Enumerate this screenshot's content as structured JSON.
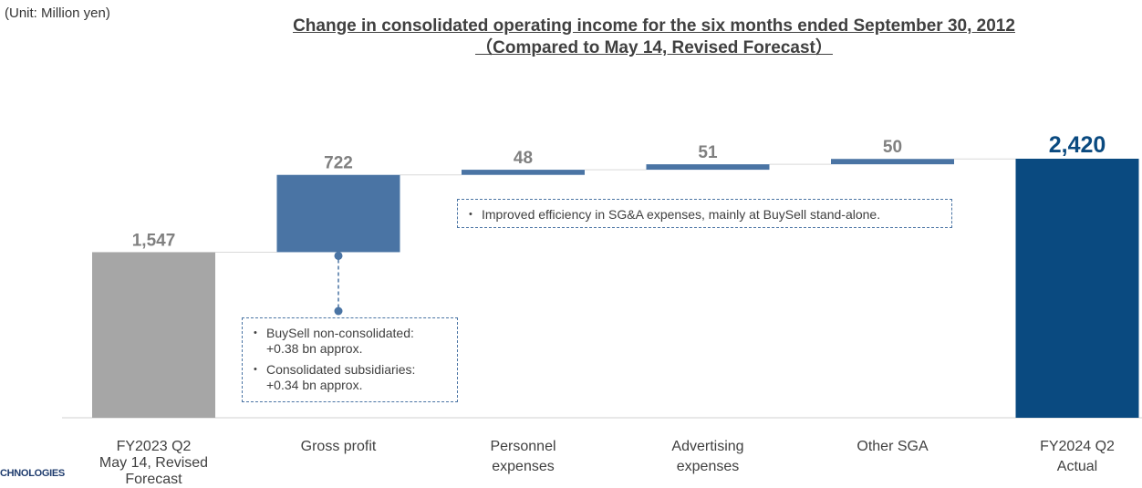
{
  "unit_label": "(Unit: Million yen)",
  "title_line1": "Change in consolidated operating income for the six months ended September 30, 2012",
  "title_line2": "（Compared to May 14, Revised Forecast）",
  "logo_fragment": "CHNOLOGIES",
  "colors": {
    "start_bar": "#a6a6a6",
    "step_bar": "#4a74a4",
    "end_bar": "#0a4a80",
    "label_grey": "#808080",
    "label_end": "#0a4a80"
  },
  "chart_data": {
    "type": "bar",
    "subtype": "waterfall",
    "title": "Change in consolidated operating income for the six months ended September 30, 2012 （Compared to May 14, Revised Forecast）",
    "unit": "(Unit: Million yen)",
    "categories": [
      [
        "FY2023 Q2",
        "May 14, Revised",
        "Forecast"
      ],
      [
        "Gross profit"
      ],
      [
        "Personnel",
        "expenses"
      ],
      [
        "Advertising",
        "expenses"
      ],
      [
        "Other SGA"
      ],
      [
        "FY2024 Q2",
        "Actual"
      ]
    ],
    "values": [
      1547,
      722,
      48,
      51,
      50,
      2420
    ],
    "value_labels": [
      "1,547",
      "722",
      "48",
      "51",
      "50",
      "2,420"
    ],
    "bar_kinds": [
      "total",
      "increase",
      "increase",
      "increase",
      "increase",
      "total"
    ],
    "ylim": [
      0,
      2420
    ],
    "grid": false,
    "legend": "none"
  },
  "annotations": {
    "sga_note": [
      "Improved efficiency in SG&A expenses, mainly at BuySell stand-alone."
    ],
    "gross_profit_note": [
      [
        "BuySell non-consolidated:",
        "+0.38 bn approx."
      ],
      [
        "Consolidated subsidiaries:",
        "+0.34 bn approx."
      ]
    ]
  }
}
